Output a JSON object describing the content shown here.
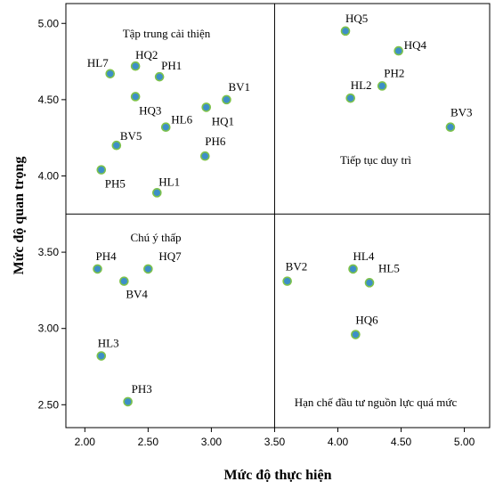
{
  "chart_data": {
    "type": "scatter",
    "xlabel": "Mức độ thực hiện",
    "ylabel": "Mức độ quan trọng",
    "xlim": [
      1.85,
      5.2
    ],
    "ylim": [
      2.35,
      5.13
    ],
    "x_ticks": [
      "2.00",
      "2.50",
      "3.00",
      "3.50",
      "4.00",
      "4.50",
      "5.00"
    ],
    "y_ticks": [
      "2.50",
      "3.00",
      "3.50",
      "4.00",
      "4.50",
      "5.00"
    ],
    "divider_x": 3.5,
    "divider_y": 3.75,
    "grid": false,
    "quadrant_labels": {
      "top_left": "Tập trung cải thiện",
      "top_right": "Tiếp tục duy trì",
      "bottom_left": "Chú ý thấp",
      "bottom_right": "Hạn chế đầu tư nguồn lực quá mức"
    },
    "point_color": "#3d8fc7",
    "point_edge_color": "#7dc24a",
    "points": [
      {
        "label": "HL7",
        "x": 2.2,
        "y": 4.67
      },
      {
        "label": "HQ2",
        "x": 2.4,
        "y": 4.72
      },
      {
        "label": "PH1",
        "x": 2.59,
        "y": 4.65
      },
      {
        "label": "BV1",
        "x": 3.12,
        "y": 4.5
      },
      {
        "label": "HQ3",
        "x": 2.4,
        "y": 4.52
      },
      {
        "label": "HL6",
        "x": 2.64,
        "y": 4.32
      },
      {
        "label": "HQ1",
        "x": 2.96,
        "y": 4.45
      },
      {
        "label": "BV5",
        "x": 2.25,
        "y": 4.2
      },
      {
        "label": "PH6",
        "x": 2.95,
        "y": 4.13
      },
      {
        "label": "PH5",
        "x": 2.13,
        "y": 4.04
      },
      {
        "label": "HL1",
        "x": 2.57,
        "y": 3.89
      },
      {
        "label": "HQ5",
        "x": 4.06,
        "y": 4.95
      },
      {
        "label": "HQ4",
        "x": 4.48,
        "y": 4.82
      },
      {
        "label": "PH2",
        "x": 4.35,
        "y": 4.59
      },
      {
        "label": "HL2",
        "x": 4.1,
        "y": 4.51
      },
      {
        "label": "BV3",
        "x": 4.89,
        "y": 4.32
      },
      {
        "label": "PH4",
        "x": 2.1,
        "y": 3.39
      },
      {
        "label": "HQ7",
        "x": 2.5,
        "y": 3.39
      },
      {
        "label": "BV4",
        "x": 2.31,
        "y": 3.31
      },
      {
        "label": "HL3",
        "x": 2.13,
        "y": 2.82
      },
      {
        "label": "PH3",
        "x": 2.34,
        "y": 2.52
      },
      {
        "label": "BV2",
        "x": 3.6,
        "y": 3.31
      },
      {
        "label": "HL4",
        "x": 4.12,
        "y": 3.39
      },
      {
        "label": "HL5",
        "x": 4.25,
        "y": 3.3
      },
      {
        "label": "HQ6",
        "x": 4.14,
        "y": 2.96
      }
    ]
  }
}
